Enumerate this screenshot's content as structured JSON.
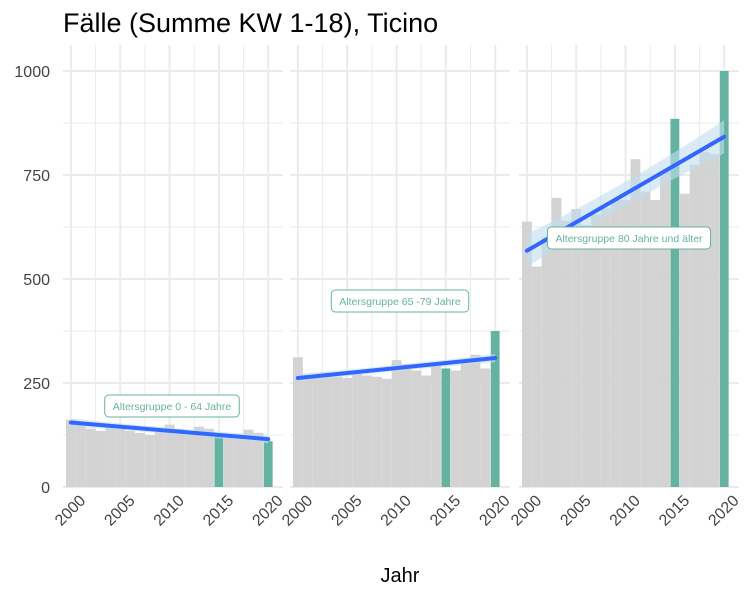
{
  "title": "Fälle (Summe KW 1-18), Ticino",
  "colors": {
    "bar": "#d3d3d3",
    "highlight": "#66b2a0",
    "trend": "#3366ff",
    "ribbon": "#bfe0ee",
    "grid": "#ebebeb",
    "annotation": "#66b2a0"
  },
  "chart_data": {
    "type": "bar",
    "title": "Fälle (Summe KW 1-18), Ticino",
    "xlabel": "Jahr",
    "ylabel": "",
    "ylim": [
      0,
      1000
    ],
    "y_ticks": [
      0,
      250,
      500,
      750,
      1000
    ],
    "x_ticks": [
      2000,
      2005,
      2010,
      2015,
      2020
    ],
    "highlight_years": [
      2015,
      2020
    ],
    "panels": [
      {
        "annotation": "Altersgruppe 0 - 64 Jahre",
        "x": [
          2000,
          2001,
          2002,
          2003,
          2004,
          2005,
          2006,
          2007,
          2008,
          2009,
          2010,
          2011,
          2012,
          2013,
          2014,
          2015,
          2016,
          2017,
          2018,
          2019,
          2020
        ],
        "values": [
          162,
          150,
          140,
          135,
          150,
          140,
          135,
          130,
          125,
          135,
          150,
          140,
          128,
          145,
          140,
          127,
          120,
          125,
          138,
          130,
          110
        ],
        "trend": [
          155,
          115
        ]
      },
      {
        "annotation": "Altersgruppe 65 -79 Jahre",
        "x": [
          2000,
          2001,
          2002,
          2003,
          2004,
          2005,
          2006,
          2007,
          2008,
          2009,
          2010,
          2011,
          2012,
          2013,
          2014,
          2015,
          2016,
          2017,
          2018,
          2019,
          2020
        ],
        "values": [
          312,
          260,
          270,
          275,
          265,
          262,
          275,
          268,
          265,
          260,
          305,
          295,
          280,
          268,
          300,
          285,
          280,
          305,
          318,
          285,
          375
        ],
        "trend": [
          262,
          310
        ]
      },
      {
        "annotation": "Altersgruppe 80 Jahre und älter",
        "x": [
          2000,
          2001,
          2002,
          2003,
          2004,
          2005,
          2006,
          2007,
          2008,
          2009,
          2010,
          2011,
          2012,
          2013,
          2014,
          2015,
          2016,
          2017,
          2018,
          2019,
          2020
        ],
        "values": [
          638,
          530,
          600,
          695,
          640,
          668,
          630,
          655,
          670,
          690,
          690,
          788,
          710,
          690,
          760,
          885,
          705,
          775,
          805,
          800,
          1000
        ],
        "trend": [
          568,
          842
        ]
      }
    ]
  }
}
